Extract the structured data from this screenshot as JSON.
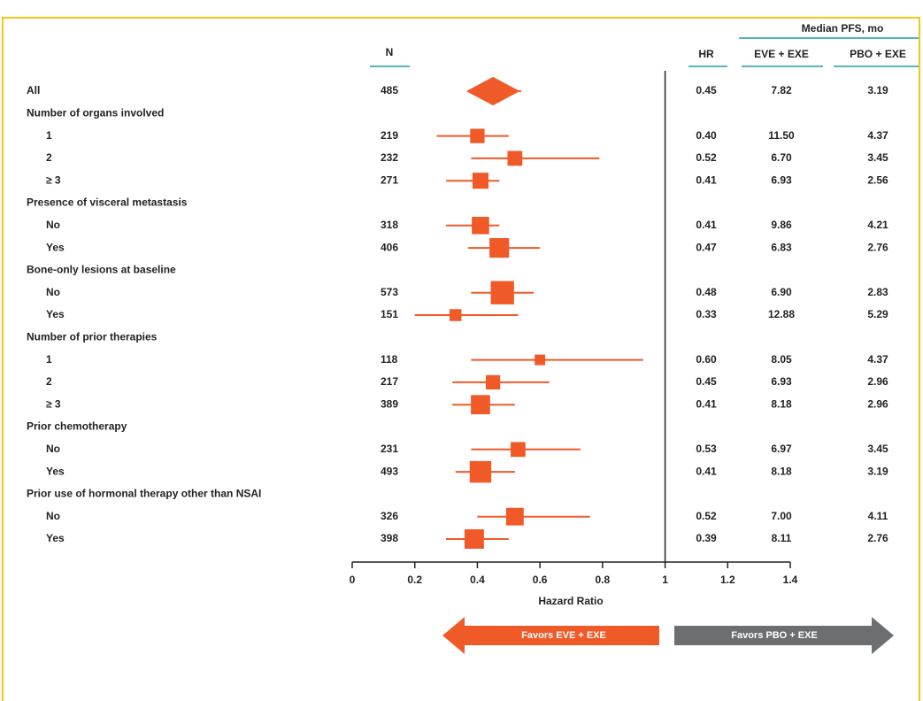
{
  "chart_data": {
    "type": "forest",
    "color": "#f05a28",
    "favor_right_color": "#6d6e70",
    "rule_color": "#1a9bb0",
    "columns": {
      "n": "N",
      "hr": "HR",
      "median": "Median PFS, mo",
      "eve": "EVE + EXE",
      "pbo": "PBO + EXE"
    },
    "xlabel": "Hazard Ratio",
    "xlim": [
      0,
      1.4
    ],
    "xticks": [
      0,
      0.2,
      0.4,
      0.6,
      0.8,
      1,
      1.2,
      1.4
    ],
    "favors_left": "Favors EVE + EXE",
    "favors_right": "Favors PBO + EXE",
    "rows": [
      {
        "label": "All",
        "n": 485,
        "hr": 0.45,
        "hr_label": "0.45",
        "lo": 0.37,
        "hi": 0.54,
        "eve": "7.82",
        "pbo": "3.19",
        "shape": "diamond"
      },
      {
        "label": "Number of organs involved"
      },
      {
        "label": "1",
        "n": 219,
        "hr": 0.4,
        "hr_label": "0.40",
        "lo": 0.27,
        "hi": 0.5,
        "eve": "11.50",
        "pbo": "4.37"
      },
      {
        "label": "2",
        "n": 232,
        "hr": 0.52,
        "hr_label": "0.52",
        "lo": 0.38,
        "hi": 0.79,
        "eve": "6.70",
        "pbo": "3.45"
      },
      {
        "label": "≥ 3",
        "n": 271,
        "hr": 0.41,
        "hr_label": "0.41",
        "lo": 0.3,
        "hi": 0.47,
        "eve": "6.93",
        "pbo": "2.56"
      },
      {
        "label": "Presence of visceral metastasis"
      },
      {
        "label": "No",
        "n": 318,
        "hr": 0.41,
        "hr_label": "0.41",
        "lo": 0.3,
        "hi": 0.47,
        "eve": "9.86",
        "pbo": "4.21"
      },
      {
        "label": "Yes",
        "n": 406,
        "hr": 0.47,
        "hr_label": "0.47",
        "lo": 0.37,
        "hi": 0.6,
        "eve": "6.83",
        "pbo": "2.76"
      },
      {
        "label": "Bone-only lesions at baseline"
      },
      {
        "label": "No",
        "n": 573,
        "hr": 0.48,
        "hr_label": "0.48",
        "lo": 0.38,
        "hi": 0.58,
        "eve": "6.90",
        "pbo": "2.83"
      },
      {
        "label": "Yes",
        "n": 151,
        "hr": 0.33,
        "hr_label": "0.33",
        "lo": 0.2,
        "hi": 0.53,
        "eve": "12.88",
        "pbo": "5.29"
      },
      {
        "label": "Number of prior therapies"
      },
      {
        "label": "1",
        "n": 118,
        "hr": 0.6,
        "hr_label": "0.60",
        "lo": 0.38,
        "hi": 0.93,
        "eve": "8.05",
        "pbo": "4.37"
      },
      {
        "label": "2",
        "n": 217,
        "hr": 0.45,
        "hr_label": "0.45",
        "lo": 0.32,
        "hi": 0.63,
        "eve": "6.93",
        "pbo": "2.96"
      },
      {
        "label": "≥ 3",
        "n": 389,
        "hr": 0.41,
        "hr_label": "0.41",
        "lo": 0.32,
        "hi": 0.52,
        "eve": "8.18",
        "pbo": "2.96"
      },
      {
        "label": "Prior chemotherapy"
      },
      {
        "label": "No",
        "n": 231,
        "hr": 0.53,
        "hr_label": "0.53",
        "lo": 0.38,
        "hi": 0.73,
        "eve": "6.97",
        "pbo": "3.45"
      },
      {
        "label": "Yes",
        "n": 493,
        "hr": 0.41,
        "hr_label": "0.41",
        "lo": 0.33,
        "hi": 0.52,
        "eve": "8.18",
        "pbo": "3.19"
      },
      {
        "label": "Prior use of hormonal therapy other than NSAI"
      },
      {
        "label": "No",
        "n": 326,
        "hr": 0.52,
        "hr_label": "0.52",
        "lo": 0.4,
        "hi": 0.76,
        "eve": "7.00",
        "pbo": "4.11"
      },
      {
        "label": "Yes",
        "n": 398,
        "hr": 0.39,
        "hr_label": "0.39",
        "lo": 0.3,
        "hi": 0.5,
        "eve": "8.11",
        "pbo": "2.76"
      }
    ]
  }
}
